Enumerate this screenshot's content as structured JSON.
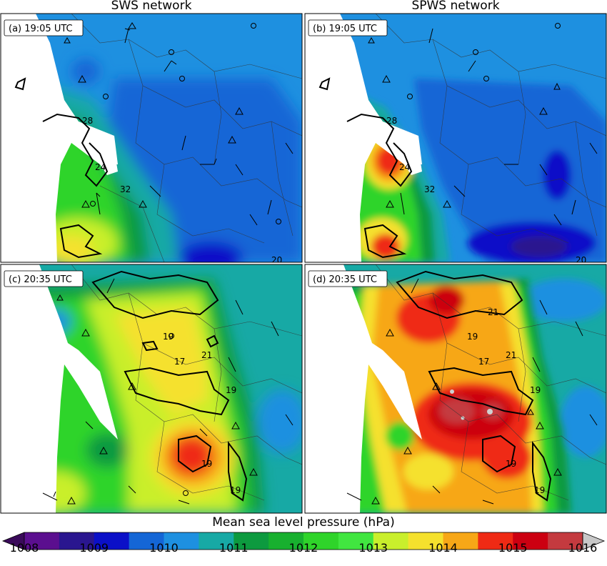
{
  "columns": [
    {
      "title": "SWS network"
    },
    {
      "title": "SPWS network"
    }
  ],
  "panels": [
    {
      "id": "a",
      "label": "(a) 19:05 UTC",
      "station_labels": [
        "28",
        "24",
        "32",
        "20"
      ]
    },
    {
      "id": "b",
      "label": "(b) 19:05 UTC",
      "station_labels": [
        "28",
        "24",
        "32",
        "20"
      ]
    },
    {
      "id": "c",
      "label": "(c) 20:35 UTC",
      "station_labels": [
        "19",
        "21",
        "17",
        "19",
        "19",
        "19"
      ]
    },
    {
      "id": "d",
      "label": "(d) 20:35 UTC",
      "station_labels": [
        "21",
        "19",
        "21",
        "17",
        "19",
        "19",
        "19"
      ]
    }
  ],
  "colorbar": {
    "title": "Mean sea level pressure (hPa)",
    "ticks": [
      "1008",
      "1009",
      "1010",
      "1011",
      "1012",
      "1013",
      "1014",
      "1015",
      "1016"
    ],
    "colors": [
      "#5b0f8f",
      "#2a168f",
      "#0b10c8",
      "#1466d6",
      "#1e90e0",
      "#17a9a5",
      "#0d9a3f",
      "#18b02f",
      "#2fd42a",
      "#41e640",
      "#c9ef2c",
      "#f5e12d",
      "#f7a717",
      "#ef2a14",
      "#cc0011",
      "#c43a3f"
    ],
    "under_color": "#3a0a5a",
    "over_color": "#c8c8c8"
  },
  "map_colors": {
    "land_base": "#1e90e0",
    "sea": "#ffffff"
  }
}
